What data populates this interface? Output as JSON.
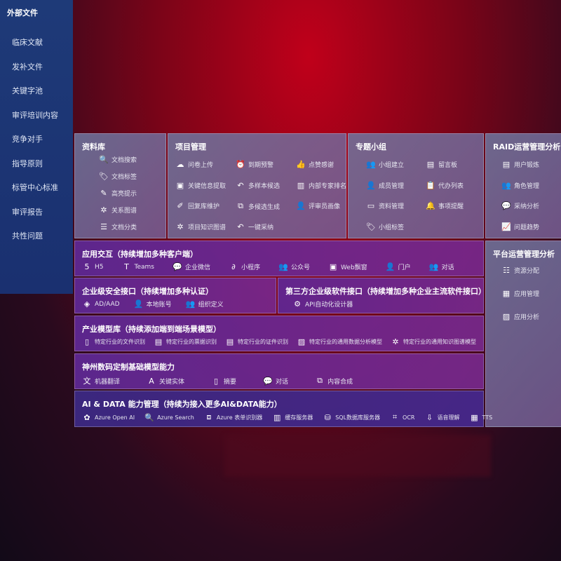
{
  "sidebar": {
    "title": "外部文件",
    "items": [
      "临床文献",
      "发补文件",
      "关键字池",
      "审评培训内容",
      "竞争对手",
      "指导原则",
      "标管中心标准",
      "审评报告",
      "共性问题"
    ]
  },
  "library": {
    "title": "资料库",
    "items": [
      {
        "icon": "doc-search-icon",
        "label": "文档搜索"
      },
      {
        "icon": "tag-icon",
        "label": "文档标签"
      },
      {
        "icon": "pen-icon",
        "label": "高亮提示"
      },
      {
        "icon": "graph-icon",
        "label": "关系图谱"
      },
      {
        "icon": "doc-class-icon",
        "label": "文档分类"
      }
    ]
  },
  "project": {
    "title": "项目管理",
    "items": [
      {
        "icon": "cloud-upload-icon",
        "label": "问卷上传"
      },
      {
        "icon": "alarm-icon",
        "label": "到期预警"
      },
      {
        "icon": "thumbs-up-icon",
        "label": "点赞感谢"
      },
      {
        "icon": "window-icon",
        "label": "关键信息提取"
      },
      {
        "icon": "reply-icon",
        "label": "多样本候选"
      },
      {
        "icon": "ranking-icon",
        "label": "内部专家排名"
      },
      {
        "icon": "edit-icon",
        "label": "回复库维护"
      },
      {
        "icon": "puzzle-icon",
        "label": "多候选生成"
      },
      {
        "icon": "user-icon",
        "label": "评审员画像"
      },
      {
        "icon": "graph-icon",
        "label": "项目知识图谱"
      },
      {
        "icon": "reply-icon",
        "label": "一键采纳"
      }
    ]
  },
  "group": {
    "title": "专题小组",
    "items": [
      {
        "icon": "group-icon",
        "label": "小组建立"
      },
      {
        "icon": "bbs-icon",
        "label": "留言板"
      },
      {
        "icon": "user-add-icon",
        "label": "成员管理"
      },
      {
        "icon": "clipboard-icon",
        "label": "代办列表"
      },
      {
        "icon": "folder-icon",
        "label": "资料管理"
      },
      {
        "icon": "bell-icon",
        "label": "事项提醒"
      },
      {
        "icon": "tag-icon",
        "label": "小组标签"
      }
    ]
  },
  "raid": {
    "title": "RAID运营管理分析",
    "items": [
      {
        "icon": "id-card-icon",
        "label": "用户锻炼"
      },
      {
        "icon": "users-icon",
        "label": "角色管理"
      },
      {
        "icon": "qa-icon",
        "label": "采纳分析"
      },
      {
        "icon": "trend-icon",
        "label": "问题趋势"
      }
    ]
  },
  "platform": {
    "title": "平台运营管理分析",
    "items": [
      {
        "icon": "list-icon",
        "label": "资源分配"
      },
      {
        "icon": "apps-icon",
        "label": "应用管理"
      },
      {
        "icon": "chart-icon",
        "label": "应用分析"
      }
    ]
  },
  "interaction": {
    "title": "应用交互（持续增加多种客户端）",
    "items": [
      {
        "icon": "html5-icon",
        "label": "H5"
      },
      {
        "icon": "teams-icon",
        "label": "Teams"
      },
      {
        "icon": "wechat-icon",
        "label": "企业微信"
      },
      {
        "icon": "miniprogram-icon",
        "label": "小程序"
      },
      {
        "icon": "users-icon",
        "label": "公众号"
      },
      {
        "icon": "window-icon",
        "label": "Web飘窗"
      },
      {
        "icon": "portal-icon",
        "label": "门户"
      },
      {
        "icon": "chat-users-icon",
        "label": "对话"
      }
    ]
  },
  "security": {
    "title": "企业级安全接口（持续增加多种认证）",
    "items": [
      {
        "icon": "ad-icon",
        "label": "AD/AAD"
      },
      {
        "icon": "user-lock-icon",
        "label": "本地账号"
      },
      {
        "icon": "org-icon",
        "label": "组织定义"
      }
    ]
  },
  "thirdparty": {
    "title": "第三方企业级软件接口（持续增加多种企业主流软件接口）",
    "items": [
      {
        "icon": "gear-icon",
        "label": "API自动化设计器"
      }
    ]
  },
  "industry": {
    "title": "产业模型库（持续添加端到端场景模型）",
    "items": [
      {
        "icon": "file-icon",
        "label": "特定行业的文件识别"
      },
      {
        "icon": "receipt-icon",
        "label": "特定行业的票据识别"
      },
      {
        "icon": "id-card-icon",
        "label": "特定行业的证件识别"
      },
      {
        "icon": "image-icon",
        "label": "特定行业的通用数据分析模型"
      },
      {
        "icon": "graph-icon",
        "label": "特定行业的通用知识图谱模型"
      }
    ]
  },
  "base": {
    "title": "神州数码定制基础模型能力",
    "items": [
      {
        "icon": "translate-icon",
        "label": "机器翻译"
      },
      {
        "icon": "entity-icon",
        "label": "关键实体"
      },
      {
        "icon": "summary-icon",
        "label": "摘要"
      },
      {
        "icon": "chat-icon",
        "label": "对话"
      },
      {
        "icon": "puzzle-icon",
        "label": "内容合成"
      }
    ]
  },
  "aidata": {
    "title": "AI & DATA 能力管理（持续为接入更多AI&DATA能力）",
    "items": [
      {
        "icon": "openai-icon",
        "label": "Azure Open AI"
      },
      {
        "icon": "search-icon",
        "label": "Azure Search"
      },
      {
        "icon": "form-icon",
        "label": "Azure 表单识别器"
      },
      {
        "icon": "cache-icon",
        "label": "缓存服务器"
      },
      {
        "icon": "database-icon",
        "label": "SQL数据库服务器"
      },
      {
        "icon": "ocr-icon",
        "label": "OCR"
      },
      {
        "icon": "speech-icon",
        "label": "语音理解"
      },
      {
        "icon": "tts-icon",
        "label": "TTS"
      }
    ]
  }
}
